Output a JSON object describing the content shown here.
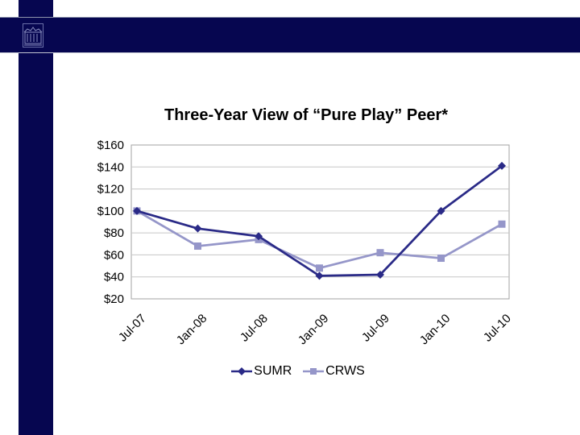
{
  "slide": {
    "background": "#ffffff",
    "banner_color": "#060650",
    "logo_icon": "building-emblem-icon"
  },
  "colors": {
    "banner_navy": "#060650",
    "sumr_series": "#2a2a87",
    "crws_series": "#9596c9",
    "gridline": "#c6c6c6",
    "plot_border": "#a3a3a3",
    "text": "#000000"
  },
  "chart_data": {
    "type": "line",
    "title": "Three-Year View of “Pure Play” Peer*",
    "categories": [
      "Jul-07",
      "Jan-08",
      "Jul-08",
      "Jan-09",
      "Jul-09",
      "Jan-10",
      "Jul-10"
    ],
    "series": [
      {
        "name": "SUMR",
        "marker": "diamond",
        "color": "#2a2a87",
        "values": [
          100,
          84,
          77,
          41,
          42,
          100,
          141
        ]
      },
      {
        "name": "CRWS",
        "marker": "square",
        "color": "#9596c9",
        "values": [
          100,
          68,
          74,
          48,
          62,
          57,
          88
        ]
      }
    ],
    "xlabel": "",
    "ylabel": "",
    "ylim": [
      20,
      160
    ],
    "ytick_step": 20,
    "ytick_labels": [
      "$20",
      "$40",
      "$60",
      "$80",
      "$100",
      "$120",
      "$140",
      "$160"
    ],
    "x_label_rotation": -45,
    "grid": true,
    "legend_position": "bottom"
  }
}
